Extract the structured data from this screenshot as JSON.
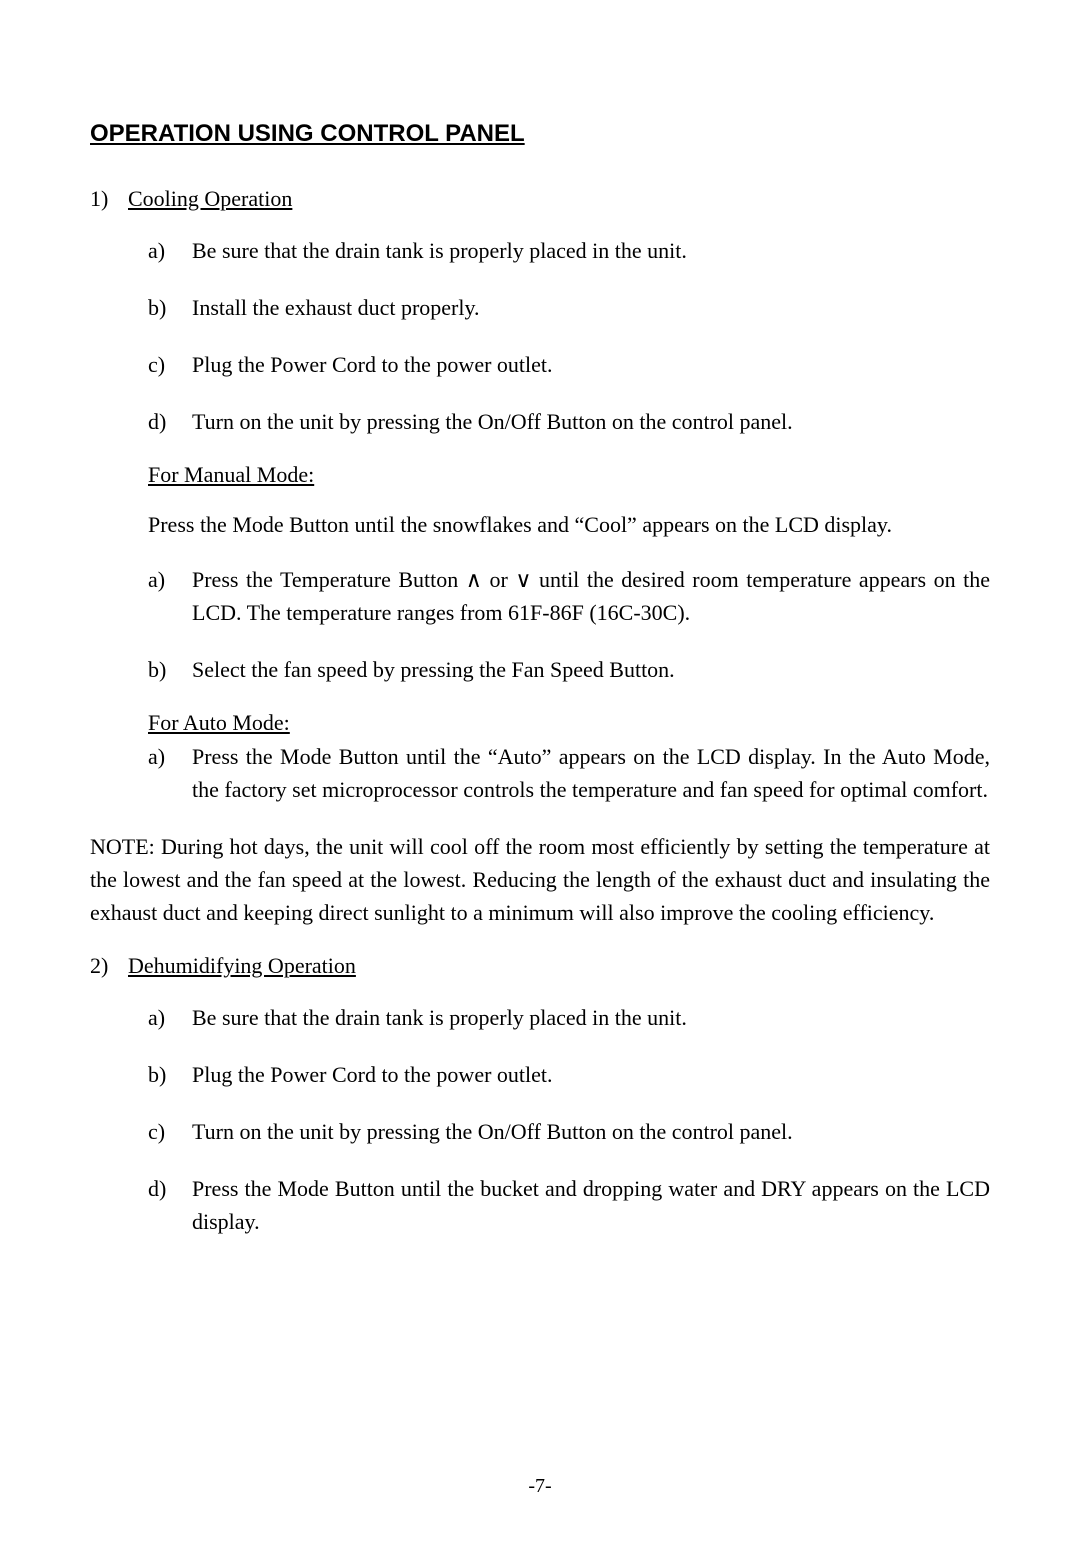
{
  "heading": "OPERATION USING CONTROL PANEL",
  "section1": {
    "num": "1)",
    "title": "Cooling Operation",
    "items": {
      "a": {
        "letter": "a)",
        "text": "Be sure that the drain tank is properly placed in the unit."
      },
      "b": {
        "letter": "b)",
        "text": "Install the exhaust duct properly."
      },
      "c": {
        "letter": "c)",
        "text": "Plug the Power Cord to the power outlet."
      },
      "d": {
        "letter": "d)",
        "text": "Turn on the unit by pressing the On/Off Button on the control panel."
      }
    },
    "manual": {
      "heading": "For Manual Mode:",
      "intro": "Press the Mode Button until the snowflakes and “Cool” appears on the LCD display.",
      "items": {
        "a": {
          "letter": "a)",
          "text": "Press the Temperature Button ∧ or ∨ until the desired room temperature appears on the LCD. The temperature ranges from 61F-86F (16C-30C)."
        },
        "b": {
          "letter": "b)",
          "text": "Select the fan speed by pressing the Fan Speed Button."
        }
      }
    },
    "auto": {
      "heading": "For Auto Mode:",
      "items": {
        "a": {
          "letter": "a)",
          "text": "Press the Mode Button until the “Auto” appears on the LCD display.  In the Auto Mode, the factory set microprocessor controls the temperature and fan speed for optimal comfort."
        }
      }
    }
  },
  "note": "NOTE: During hot days, the unit will cool off the room most efficiently by setting the temperature at the lowest and the fan speed at the lowest.  Reducing the length of the exhaust duct and insulating the exhaust duct and keeping direct sunlight to a minimum will also improve the cooling efficiency.",
  "section2": {
    "num": "2)",
    "title": "Dehumidifying Operation",
    "items": {
      "a": {
        "letter": "a)",
        "text": "Be sure that the drain tank is properly placed in the unit."
      },
      "b": {
        "letter": "b)",
        "text": "Plug the Power Cord to the power outlet."
      },
      "c": {
        "letter": "c)",
        "text": "Turn on the unit by pressing the On/Off Button on the control panel."
      },
      "d": {
        "letter": "d)",
        "text": "Press the Mode Button until the bucket and dropping water and  DRY  appears on the LCD display."
      }
    }
  },
  "pageNumber": "-7-"
}
